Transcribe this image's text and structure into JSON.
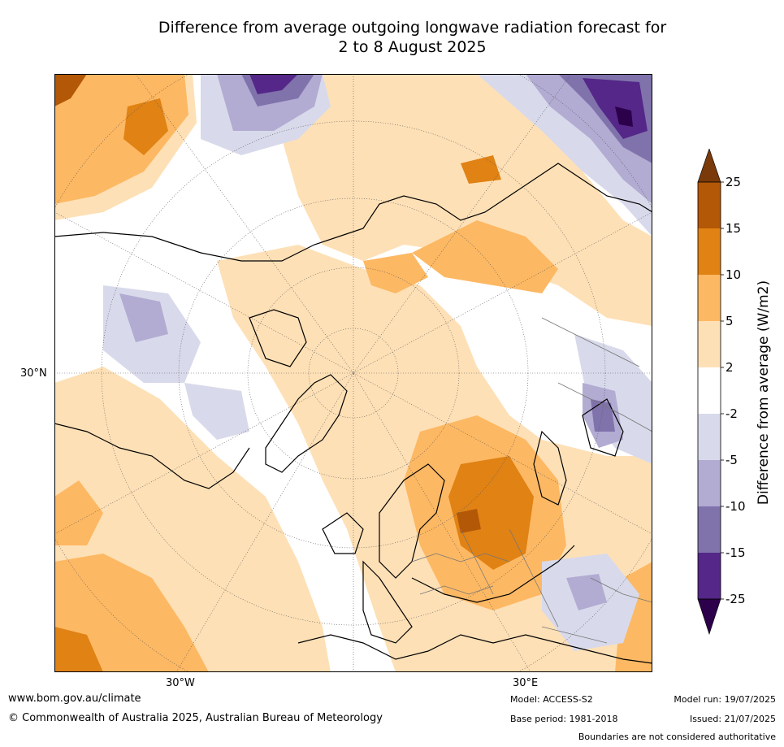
{
  "title_line1": "Difference from average outgoing longwave radiation forecast for",
  "title_line2": "2 to 8 August 2025",
  "map": {
    "labels": {
      "lat_30n": "30°N",
      "lon_30w": "30°W",
      "lon_30e": "30°E"
    }
  },
  "legend": {
    "title": "Difference from average (W/m2)",
    "ticks": [
      "25",
      "15",
      "10",
      "5",
      "2",
      "-2",
      "-5",
      "-10",
      "-15",
      "-25"
    ],
    "colors": {
      "above_25": "#7a3a0a",
      "15_25": "#b35806",
      "10_15": "#e08214",
      "5_10": "#fdb863",
      "2_5": "#fee0b6",
      "neutral": "#ffffff",
      "m2_m5": "#d8daeb",
      "m5_m10": "#b2abd2",
      "m10_m15": "#8073ac",
      "m15_m25": "#542788",
      "below_m25": "#2d004b"
    }
  },
  "footer": {
    "website": "www.bom.gov.au/climate",
    "copyright": "© Commonwealth of Australia 2025, Australian Bureau of Meteorology",
    "model": "Model: ACCESS-S2",
    "base_period": "Base period: 1981-2018",
    "model_run": "Model run: 19/07/2025",
    "issued": "Issued: 21/07/2025",
    "disclaimer": "Boundaries are not considered authoritative"
  }
}
